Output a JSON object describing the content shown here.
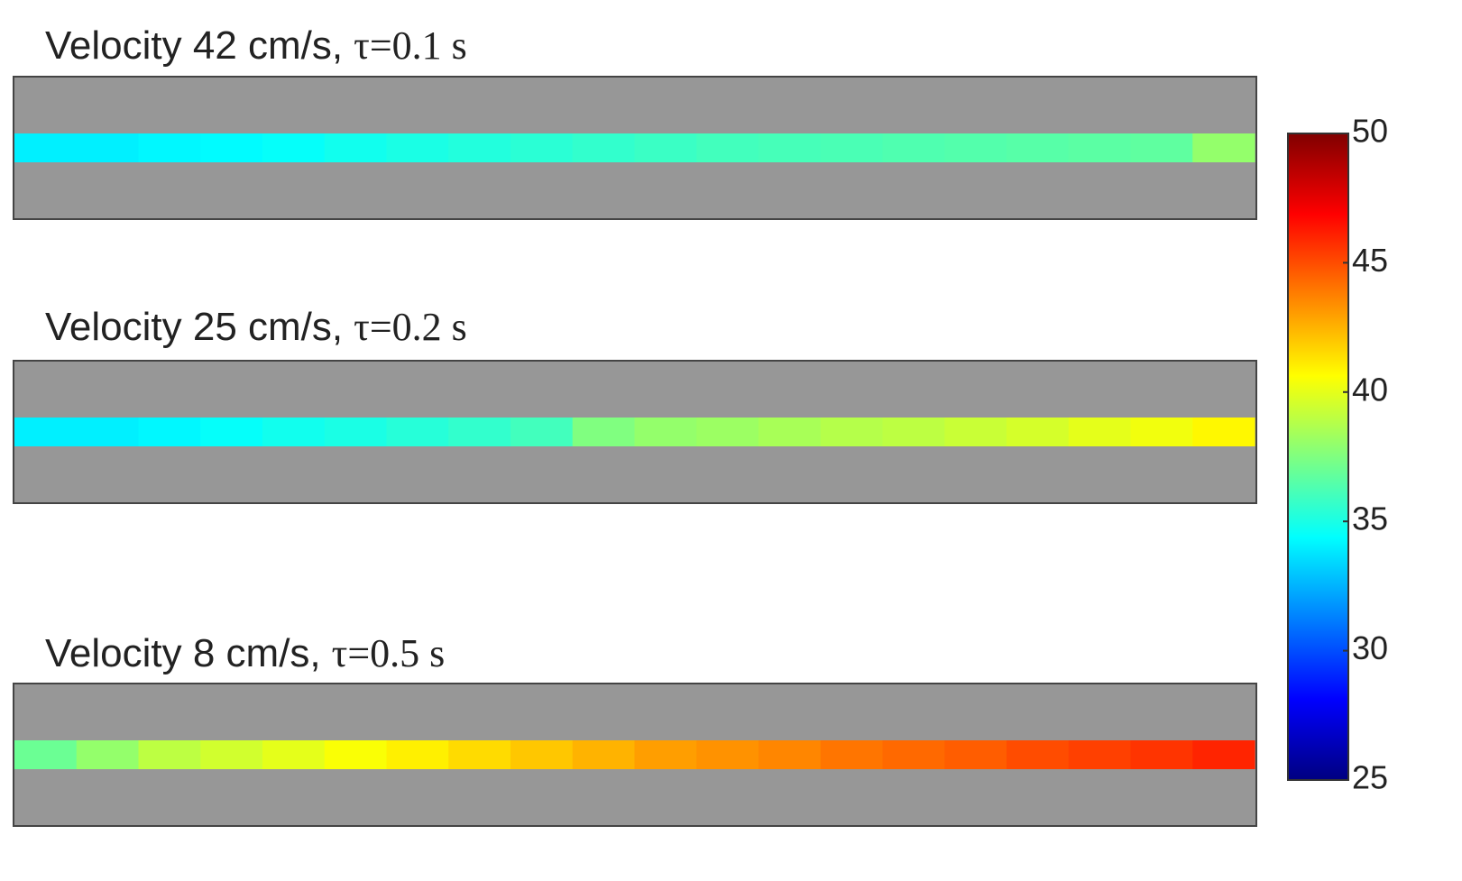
{
  "chart_data": [
    {
      "type": "strip",
      "title_parts": [
        "Velocity 42 cm/s,",
        "τ=0.1 s"
      ],
      "values": [
        34,
        34,
        34.2,
        34.3,
        34.5,
        34.8,
        35,
        35.2,
        35.4,
        35.6,
        35.8,
        36,
        36.1,
        36.2,
        36.3,
        36.4,
        36.5,
        36.6,
        36.7,
        38
      ]
    },
    {
      "type": "strip",
      "title_parts": [
        "Velocity 25 cm/s,",
        "τ=0.2 s"
      ],
      "values": [
        34,
        34,
        34.2,
        34.5,
        34.8,
        35,
        35.3,
        35.6,
        36,
        37.5,
        38,
        38.2,
        38.5,
        38.8,
        39,
        39.3,
        39.6,
        40,
        40.3,
        40.8
      ]
    },
    {
      "type": "strip",
      "title_parts": [
        "Velocity 8 cm/s,",
        "τ=0.5 s"
      ],
      "values": [
        37,
        38,
        39,
        39.5,
        40,
        40.5,
        41,
        41.5,
        42,
        42.5,
        43,
        43.3,
        43.6,
        44,
        44.3,
        44.6,
        45,
        45.3,
        45.6,
        46
      ]
    },
    {
      "type": "colorbar",
      "clim": [
        25,
        50
      ],
      "ticks": [
        25,
        30,
        35,
        40,
        45,
        50
      ],
      "colormap": "jet"
    }
  ]
}
